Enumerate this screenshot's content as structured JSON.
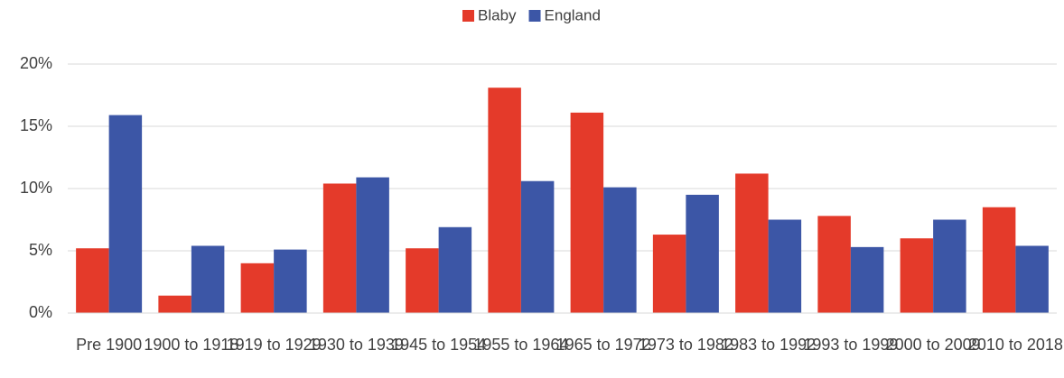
{
  "chart_data": {
    "type": "bar",
    "categories": [
      "Pre 1900",
      "1900 to 1918",
      "1919 to 1929",
      "1930 to 1939",
      "1945 to 1954",
      "1955 to 1964",
      "1965 to 1972",
      "1973 to 1982",
      "1983 to 1992",
      "1993 to 1999",
      "2000 to 2009",
      "2010 to 2018"
    ],
    "series": [
      {
        "name": "Blaby",
        "color": "#e43a2a",
        "values": [
          5.2,
          1.4,
          4.0,
          10.4,
          5.2,
          18.1,
          16.1,
          6.3,
          11.2,
          7.8,
          6.0,
          8.5
        ]
      },
      {
        "name": "England",
        "color": "#3c56a6",
        "values": [
          15.9,
          5.4,
          5.1,
          10.9,
          6.9,
          10.6,
          10.1,
          9.5,
          7.5,
          5.3,
          7.5,
          5.4
        ]
      }
    ],
    "ylim": [
      0,
      20
    ],
    "yticks": [
      {
        "value": 0,
        "label": "0%"
      },
      {
        "value": 5,
        "label": "5%"
      },
      {
        "value": 10,
        "label": "10%"
      },
      {
        "value": 15,
        "label": "15%"
      },
      {
        "value": 20,
        "label": "20%"
      }
    ],
    "grid": true,
    "legend": "top"
  }
}
